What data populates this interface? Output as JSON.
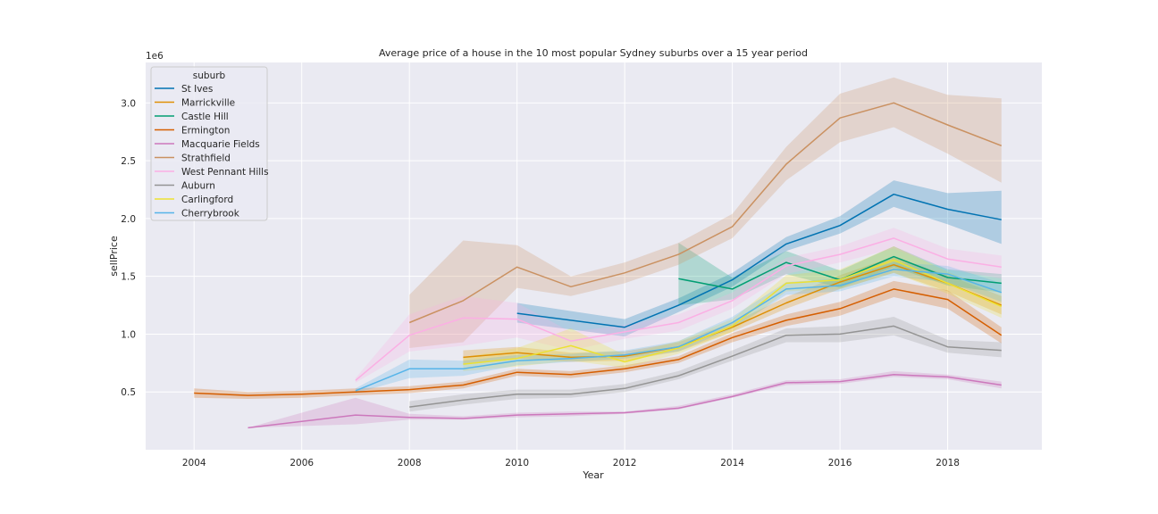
{
  "chart_data": {
    "type": "line",
    "title": "Average price of a house in the 10 most popular Sydney suburbs over a 15 year period",
    "xlabel": "Year",
    "ylabel": "sellPrice",
    "y_offset_label": "1e6",
    "xlim": [
      2003.1,
      2019.75
    ],
    "ylim": [
      0,
      3.35
    ],
    "x_ticks": [
      2004,
      2006,
      2008,
      2010,
      2012,
      2014,
      2016,
      2018
    ],
    "x_tick_labels": [
      "2004",
      "2006",
      "2008",
      "2010",
      "2012",
      "2014",
      "2016",
      "2018"
    ],
    "y_ticks": [
      0.5,
      1.0,
      1.5,
      2.0,
      2.5,
      3.0
    ],
    "y_tick_labels": [
      "0.5",
      "1.0",
      "1.5",
      "2.0",
      "2.5",
      "3.0"
    ],
    "grid": true,
    "legend_title": "suburb",
    "legend_position": "upper-left",
    "series": [
      {
        "name": "St Ives",
        "color": "#0173b2",
        "x": [
          2010,
          2012,
          2013,
          2014,
          2015,
          2016,
          2017,
          2018,
          2019
        ],
        "y": [
          1.18,
          1.06,
          1.25,
          1.47,
          1.78,
          1.94,
          2.21,
          2.08,
          1.99
        ],
        "lower": [
          1.1,
          0.98,
          1.19,
          1.41,
          1.72,
          1.87,
          2.1,
          1.95,
          1.78
        ],
        "upper": [
          1.27,
          1.13,
          1.31,
          1.53,
          1.84,
          2.02,
          2.33,
          2.22,
          2.24
        ]
      },
      {
        "name": "Marrickville",
        "color": "#de8f05",
        "x": [
          2009,
          2010,
          2011,
          2012,
          2013,
          2014,
          2015,
          2016,
          2017,
          2018,
          2019
        ],
        "y": [
          0.8,
          0.84,
          0.8,
          0.81,
          0.89,
          1.06,
          1.27,
          1.45,
          1.6,
          1.44,
          1.25
        ],
        "lower": [
          0.74,
          0.79,
          0.76,
          0.77,
          0.85,
          1.02,
          1.22,
          1.39,
          1.53,
          1.37,
          1.17
        ],
        "upper": [
          0.86,
          0.89,
          0.84,
          0.85,
          0.93,
          1.1,
          1.32,
          1.51,
          1.67,
          1.51,
          1.33
        ]
      },
      {
        "name": "Castle Hill",
        "color": "#029e73",
        "x": [
          2013,
          2014,
          2015,
          2016,
          2017,
          2018,
          2019
        ],
        "y": [
          1.48,
          1.39,
          1.62,
          1.47,
          1.67,
          1.49,
          1.44
        ],
        "lower": [
          1.25,
          1.3,
          1.52,
          1.4,
          1.58,
          1.42,
          1.36
        ],
        "upper": [
          1.79,
          1.49,
          1.72,
          1.55,
          1.76,
          1.56,
          1.52
        ]
      },
      {
        "name": "Ermington",
        "color": "#d55e00",
        "x": [
          2004,
          2005,
          2006,
          2007,
          2008,
          2009,
          2010,
          2011,
          2012,
          2013,
          2014,
          2015,
          2016,
          2017,
          2018,
          2019
        ],
        "y": [
          0.49,
          0.47,
          0.48,
          0.5,
          0.52,
          0.56,
          0.67,
          0.65,
          0.7,
          0.78,
          0.97,
          1.12,
          1.22,
          1.39,
          1.3,
          0.99
        ],
        "lower": [
          0.45,
          0.44,
          0.45,
          0.47,
          0.49,
          0.53,
          0.64,
          0.62,
          0.67,
          0.75,
          0.93,
          1.07,
          1.16,
          1.32,
          1.22,
          0.92
        ],
        "upper": [
          0.53,
          0.5,
          0.51,
          0.53,
          0.55,
          0.59,
          0.7,
          0.68,
          0.73,
          0.81,
          1.01,
          1.17,
          1.28,
          1.46,
          1.38,
          1.06
        ]
      },
      {
        "name": "Macquarie Fields",
        "color": "#cc78bc",
        "x": [
          2005,
          2007,
          2008,
          2009,
          2010,
          2011,
          2012,
          2013,
          2014,
          2015,
          2016,
          2017,
          2018,
          2019
        ],
        "y": [
          0.19,
          0.3,
          0.28,
          0.27,
          0.3,
          0.31,
          0.32,
          0.36,
          0.46,
          0.58,
          0.59,
          0.65,
          0.63,
          0.56
        ],
        "lower": [
          0.19,
          0.22,
          0.26,
          0.26,
          0.28,
          0.29,
          0.31,
          0.35,
          0.45,
          0.56,
          0.57,
          0.63,
          0.61,
          0.53
        ],
        "upper": [
          0.19,
          0.45,
          0.31,
          0.29,
          0.32,
          0.33,
          0.33,
          0.38,
          0.48,
          0.6,
          0.61,
          0.68,
          0.65,
          0.59
        ]
      },
      {
        "name": "Strathfield",
        "color": "#ca9161",
        "x": [
          2008,
          2009,
          2010,
          2011,
          2012,
          2013,
          2014,
          2015,
          2016,
          2017,
          2018,
          2019
        ],
        "y": [
          1.1,
          1.29,
          1.58,
          1.41,
          1.53,
          1.69,
          1.93,
          2.47,
          2.87,
          3.0,
          2.81,
          2.63
        ],
        "lower": [
          0.88,
          0.93,
          1.4,
          1.33,
          1.44,
          1.6,
          1.83,
          2.33,
          2.66,
          2.79,
          2.56,
          2.31
        ],
        "upper": [
          1.34,
          1.81,
          1.77,
          1.5,
          1.62,
          1.79,
          2.04,
          2.62,
          3.08,
          3.22,
          3.07,
          3.04
        ]
      },
      {
        "name": "West Pennant Hills",
        "color": "#fbafe4",
        "x": [
          2007,
          2008,
          2009,
          2010,
          2011,
          2012,
          2013,
          2014,
          2015,
          2016,
          2017,
          2018,
          2019
        ],
        "y": [
          0.6,
          0.99,
          1.14,
          1.13,
          0.94,
          1.02,
          1.1,
          1.29,
          1.59,
          1.69,
          1.83,
          1.65,
          1.58
        ],
        "lower": [
          0.58,
          0.85,
          0.9,
          0.97,
          0.86,
          0.96,
          1.03,
          1.22,
          1.52,
          1.62,
          1.74,
          1.56,
          1.48
        ],
        "upper": [
          0.62,
          1.17,
          1.33,
          1.27,
          1.02,
          1.08,
          1.17,
          1.36,
          1.66,
          1.76,
          1.92,
          1.74,
          1.68
        ]
      },
      {
        "name": "Auburn",
        "color": "#949494",
        "x": [
          2008,
          2009,
          2010,
          2011,
          2012,
          2013,
          2014,
          2015,
          2016,
          2017,
          2018,
          2019
        ],
        "y": [
          0.37,
          0.43,
          0.48,
          0.48,
          0.53,
          0.64,
          0.81,
          0.99,
          1.0,
          1.07,
          0.89,
          0.86
        ],
        "lower": [
          0.33,
          0.39,
          0.44,
          0.45,
          0.5,
          0.61,
          0.77,
          0.93,
          0.93,
          0.99,
          0.84,
          0.8
        ],
        "upper": [
          0.42,
          0.48,
          0.52,
          0.52,
          0.57,
          0.68,
          0.86,
          1.05,
          1.07,
          1.15,
          0.95,
          0.93
        ]
      },
      {
        "name": "Carlingford",
        "color": "#ece133",
        "x": [
          2009,
          2010,
          2011,
          2012,
          2013,
          2014,
          2015,
          2016,
          2017,
          2018,
          2019
        ],
        "y": [
          0.74,
          0.79,
          0.9,
          0.76,
          0.88,
          1.07,
          1.44,
          1.47,
          1.64,
          1.44,
          1.24
        ],
        "lower": [
          0.68,
          0.72,
          0.77,
          0.71,
          0.83,
          1.02,
          1.37,
          1.39,
          1.53,
          1.35,
          1.14
        ],
        "upper": [
          0.8,
          0.88,
          1.05,
          0.82,
          0.94,
          1.13,
          1.51,
          1.56,
          1.76,
          1.54,
          1.36
        ]
      },
      {
        "name": "Cherrybrook",
        "color": "#56b4e9",
        "x": [
          2007,
          2008,
          2009,
          2010,
          2011,
          2012,
          2013,
          2014,
          2015,
          2016,
          2017,
          2018,
          2019
        ],
        "y": [
          0.51,
          0.7,
          0.7,
          0.77,
          0.79,
          0.82,
          0.89,
          1.1,
          1.39,
          1.42,
          1.56,
          1.52,
          1.36
        ],
        "lower": [
          0.49,
          0.62,
          0.64,
          0.73,
          0.76,
          0.79,
          0.85,
          1.05,
          1.34,
          1.37,
          1.5,
          1.45,
          1.28
        ],
        "upper": [
          0.53,
          0.78,
          0.77,
          0.82,
          0.83,
          0.86,
          0.94,
          1.15,
          1.45,
          1.48,
          1.62,
          1.59,
          1.44
        ]
      }
    ]
  }
}
